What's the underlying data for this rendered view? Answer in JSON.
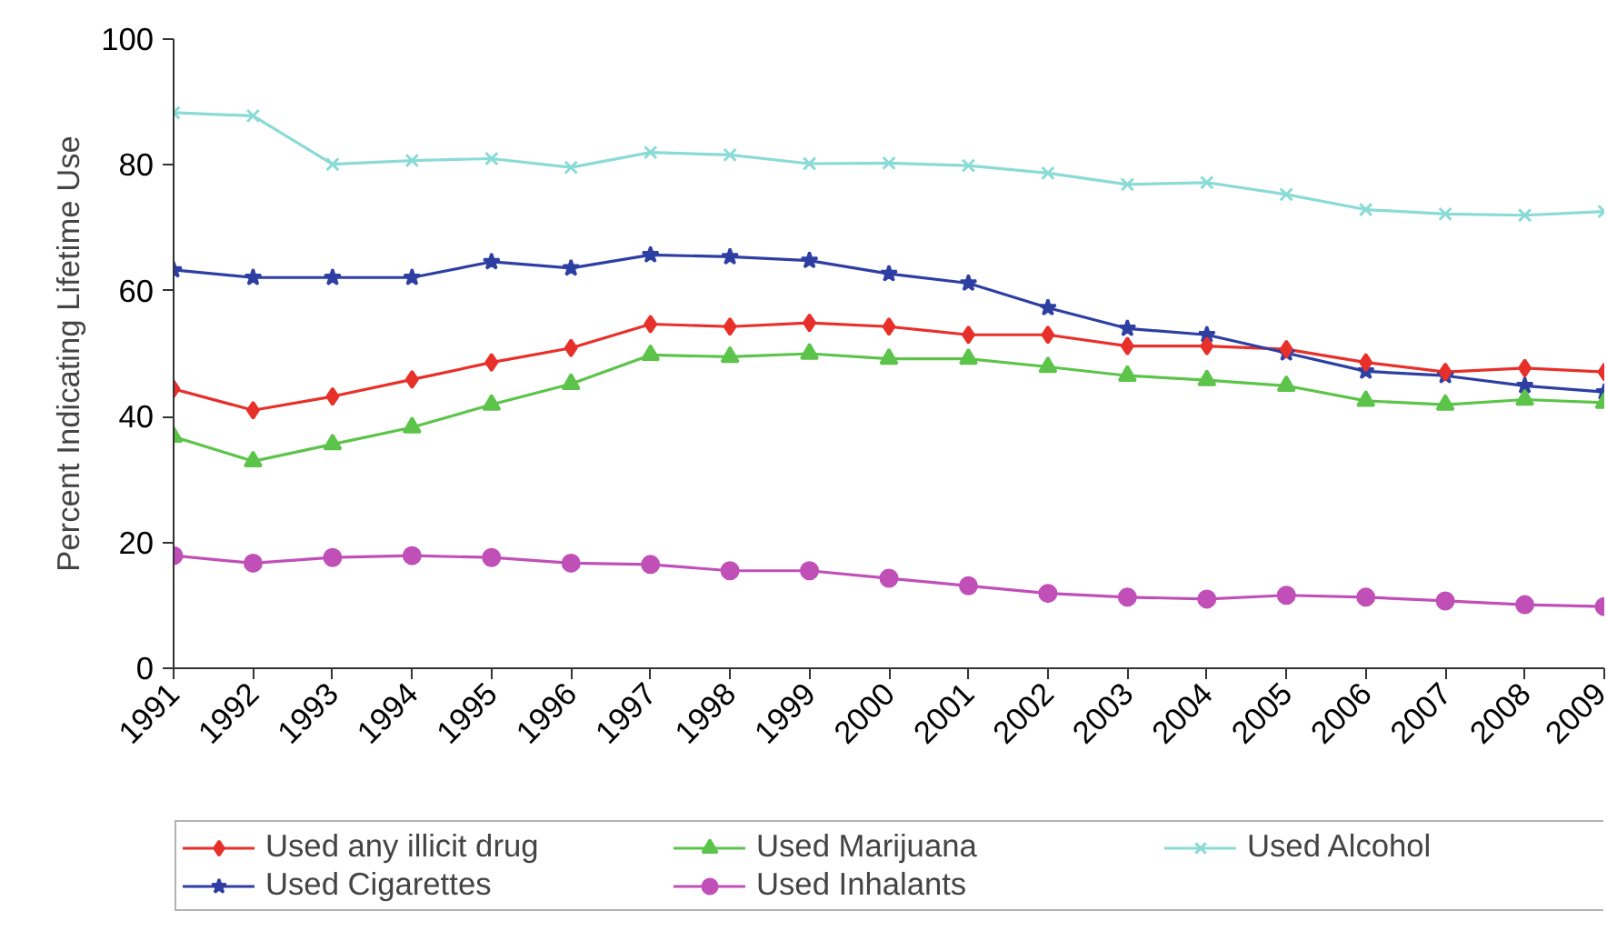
{
  "chart_data": {
    "type": "line",
    "ylabel": "Percent Indicating Lifetime Use",
    "x": [
      1991,
      1992,
      1993,
      1994,
      1995,
      1996,
      1997,
      1998,
      1999,
      2000,
      2001,
      2002,
      2003,
      2004,
      2005,
      2006,
      2007,
      2008,
      2009
    ],
    "xlim": [
      1991,
      2009
    ],
    "xticks": [
      1991,
      1992,
      1993,
      1994,
      1995,
      1996,
      1997,
      1998,
      1999,
      2000,
      2001,
      2002,
      2003,
      2004,
      2005,
      2006,
      2007,
      2008,
      2009
    ],
    "ylim": [
      0,
      100
    ],
    "yticks": [
      0,
      20,
      40,
      60,
      80,
      100
    ],
    "grid": false,
    "legend": "bottom",
    "line_style": "solid",
    "series": [
      {
        "name": "Used any illicit drug",
        "color": "#e8302a",
        "marker": "diamond",
        "values": [
          44.4,
          41.0,
          43.2,
          45.9,
          48.6,
          50.9,
          54.7,
          54.3,
          54.9,
          54.3,
          53.0,
          53.0,
          51.2,
          51.2,
          50.7,
          48.6,
          47.1,
          47.7,
          47.1
        ]
      },
      {
        "name": "Used Marijuana",
        "color": "#5cc44a",
        "marker": "triangle",
        "values": [
          36.8,
          32.9,
          35.6,
          38.3,
          41.9,
          45.2,
          49.8,
          49.5,
          50.0,
          49.2,
          49.2,
          47.9,
          46.5,
          45.8,
          44.9,
          42.5,
          41.9,
          42.7,
          42.2
        ]
      },
      {
        "name": "Used Alcohol",
        "color": "#8adbd6",
        "marker": "cross",
        "values": [
          88.3,
          87.8,
          80.1,
          80.7,
          81.0,
          79.6,
          82.0,
          81.6,
          80.2,
          80.3,
          79.9,
          78.7,
          76.9,
          77.2,
          75.3,
          72.9,
          72.2,
          72.0,
          72.6
        ]
      },
      {
        "name": "Used Cigarettes",
        "color": "#2e3fa3",
        "marker": "star",
        "values": [
          63.3,
          62.1,
          62.1,
          62.1,
          64.6,
          63.6,
          65.7,
          65.4,
          64.8,
          62.7,
          61.2,
          57.3,
          54.0,
          53.0,
          50.1,
          47.2,
          46.5,
          44.9,
          43.9
        ]
      },
      {
        "name": "Used Inhalants",
        "color": "#c050b8",
        "marker": "circle",
        "values": [
          17.9,
          16.7,
          17.6,
          17.9,
          17.6,
          16.7,
          16.5,
          15.5,
          15.5,
          14.3,
          13.1,
          11.9,
          11.3,
          11.0,
          11.6,
          11.3,
          10.7,
          10.1,
          9.8
        ]
      }
    ]
  }
}
